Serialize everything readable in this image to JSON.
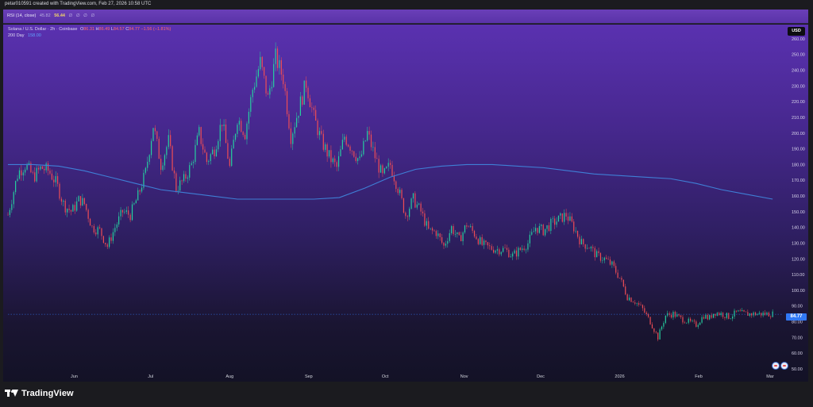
{
  "caption": "petar010591 created with TradingView.com, Feb 27, 2026 10:58 UTC",
  "rsi": {
    "label": "RSI (14, close)",
    "value_a": "45.82",
    "value_b": "56.44",
    "icons": "∅ ∅ ∅ ∅"
  },
  "legend": {
    "symbol": "Solana / U.S. Dollar · 2h · Coinbase",
    "o_label": "O",
    "o_value": "86.31",
    "h_label": "H",
    "h_value": "86.49",
    "l_label": "L",
    "l_value": "84.57",
    "c_label": "C",
    "c_value": "84.77",
    "change": "−1.56 (−1.81%)",
    "ma_label": "200 Day",
    "ma_value": "158.00"
  },
  "currency": "USD",
  "last_price_label": "84.77",
  "footer": {
    "brand": "TradingView",
    "logo_icon": "tradingview-logo-icon"
  },
  "colors": {
    "up": "#26d0a0",
    "down": "#ef4d55",
    "ma": "#3f7fd6",
    "price_badge": "#3179f5"
  },
  "chart_data": {
    "type": "line",
    "title": "Solana / U.S. Dollar · 2h · Coinbase",
    "xlabel": "",
    "ylabel": "",
    "ylim": [
      50,
      265
    ],
    "yticks": [
      50,
      60,
      70,
      80,
      90,
      100,
      110,
      120,
      130,
      140,
      150,
      160,
      170,
      180,
      190,
      200,
      210,
      220,
      230,
      240,
      250,
      260
    ],
    "ytick_labels": [
      "50.00",
      "60.00",
      "70.00",
      "80.00",
      "90.00",
      "100.00",
      "110.00",
      "120.00",
      "130.00",
      "140.00",
      "150.00",
      "160.00",
      "170.00",
      "180.00",
      "190.00",
      "200.00",
      "210.00",
      "220.00",
      "230.00",
      "240.00",
      "250.00",
      "260.00"
    ],
    "xticks": [
      "Jun",
      "Jul",
      "Aug",
      "Sep",
      "Oct",
      "Nov",
      "Dec",
      "2026",
      "Feb",
      "Mar"
    ],
    "xtick_positions_days": [
      1,
      31,
      62,
      93,
      123,
      154,
      184,
      215,
      246,
      274
    ],
    "x_range_days": [
      -25,
      279
    ],
    "grid": false,
    "series": [
      {
        "name": "Solana / U.S. Dollar",
        "x_days": [
          -25,
          -21,
          -18,
          -15,
          -12,
          -9,
          -6,
          -3,
          0,
          3,
          5,
          8,
          11,
          14,
          17,
          20,
          23,
          26,
          29,
          32,
          35,
          38,
          41,
          44,
          47,
          50,
          53,
          56,
          59,
          62,
          65,
          68,
          71,
          74,
          77,
          80,
          83,
          86,
          89,
          92,
          95,
          98,
          101,
          104,
          107,
          110,
          113,
          116,
          119,
          122,
          125,
          128,
          131,
          134,
          137,
          140,
          143,
          146,
          149,
          152,
          155,
          158,
          161,
          164,
          167,
          170,
          173,
          176,
          179,
          182,
          185,
          188,
          191,
          194,
          197,
          200,
          203,
          206,
          209,
          212,
          215,
          218,
          221,
          224,
          227,
          230,
          233,
          236,
          239,
          242,
          245,
          248,
          250,
          252,
          255,
          258,
          261,
          264,
          267,
          270,
          273,
          275
        ],
        "values": [
          148,
          175,
          180,
          172,
          178,
          176,
          168,
          154,
          150,
          158,
          155,
          140,
          138,
          128,
          140,
          150,
          148,
          160,
          175,
          205,
          180,
          195,
          165,
          170,
          180,
          200,
          182,
          190,
          208,
          178,
          210,
          200,
          228,
          245,
          222,
          248,
          235,
          198,
          215,
          232,
          210,
          195,
          185,
          178,
          198,
          190,
          182,
          200,
          185,
          172,
          180,
          165,
          148,
          158,
          150,
          138,
          137,
          128,
          140,
          132,
          142,
          136,
          129,
          127,
          126,
          126,
          122,
          126,
          130,
          140,
          138,
          142,
          145,
          148,
          140,
          130,
          128,
          122,
          120,
          116,
          108,
          96,
          93,
          88,
          80,
          70,
          84,
          85,
          82,
          80,
          78,
          84,
          82,
          86,
          85,
          83,
          86,
          85,
          85,
          85,
          85,
          85
        ]
      },
      {
        "name": "200 Day",
        "x_days": [
          -25,
          -15,
          -5,
          5,
          15,
          25,
          35,
          45,
          55,
          65,
          75,
          85,
          95,
          105,
          115,
          125,
          135,
          145,
          155,
          165,
          175,
          185,
          195,
          205,
          215,
          225,
          235,
          245,
          255,
          265,
          275
        ],
        "values": [
          180,
          180,
          179,
          176,
          172,
          168,
          164,
          162,
          160,
          158,
          158,
          158,
          158,
          159,
          165,
          172,
          177,
          179,
          180,
          180,
          179,
          178,
          176,
          174,
          173,
          172,
          171,
          168,
          164,
          161,
          158
        ]
      }
    ]
  }
}
